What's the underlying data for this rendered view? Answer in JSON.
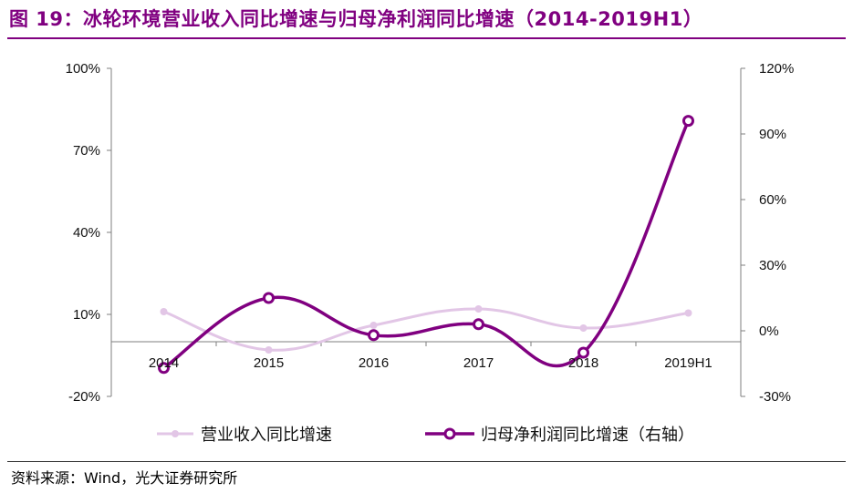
{
  "header": {
    "title": "图 19：冰轮环境营业收入同比增速与归母净利润同比增速（2014-2019H1）"
  },
  "footer": {
    "source": "资料来源：Wind，光大证券研究所"
  },
  "colors": {
    "title": "#800080",
    "series_revenue": "#E2C6E6",
    "series_profit": "#800080",
    "axis": "#7f7f7f"
  },
  "chart_data": {
    "type": "line",
    "title": "冰轮环境营业收入同比增速与归母净利润同比增速（2014-2019H1）",
    "categories": [
      "2014",
      "2015",
      "2016",
      "2017",
      "2018",
      "2019H1"
    ],
    "y_left": {
      "min": -20,
      "max": 100,
      "ticks": [
        -20,
        10,
        40,
        70,
        100
      ],
      "tick_labels": [
        "-20%",
        "10%",
        "40%",
        "70%",
        "100%"
      ]
    },
    "y_right": {
      "min": -30,
      "max": 120,
      "ticks": [
        -30,
        0,
        30,
        60,
        90,
        120
      ],
      "tick_labels": [
        "-30%",
        "0%",
        "30%",
        "60%",
        "90%",
        "120%"
      ]
    },
    "grid": false,
    "legend_position": "bottom",
    "series": [
      {
        "name": "营业收入同比增速",
        "axis": "left",
        "values": [
          11,
          -3,
          6,
          12,
          5,
          10.5
        ]
      },
      {
        "name": "归母净利润同比增速（右轴）",
        "axis": "right",
        "values": [
          -17,
          15,
          -2,
          3,
          -10,
          96
        ]
      }
    ]
  }
}
